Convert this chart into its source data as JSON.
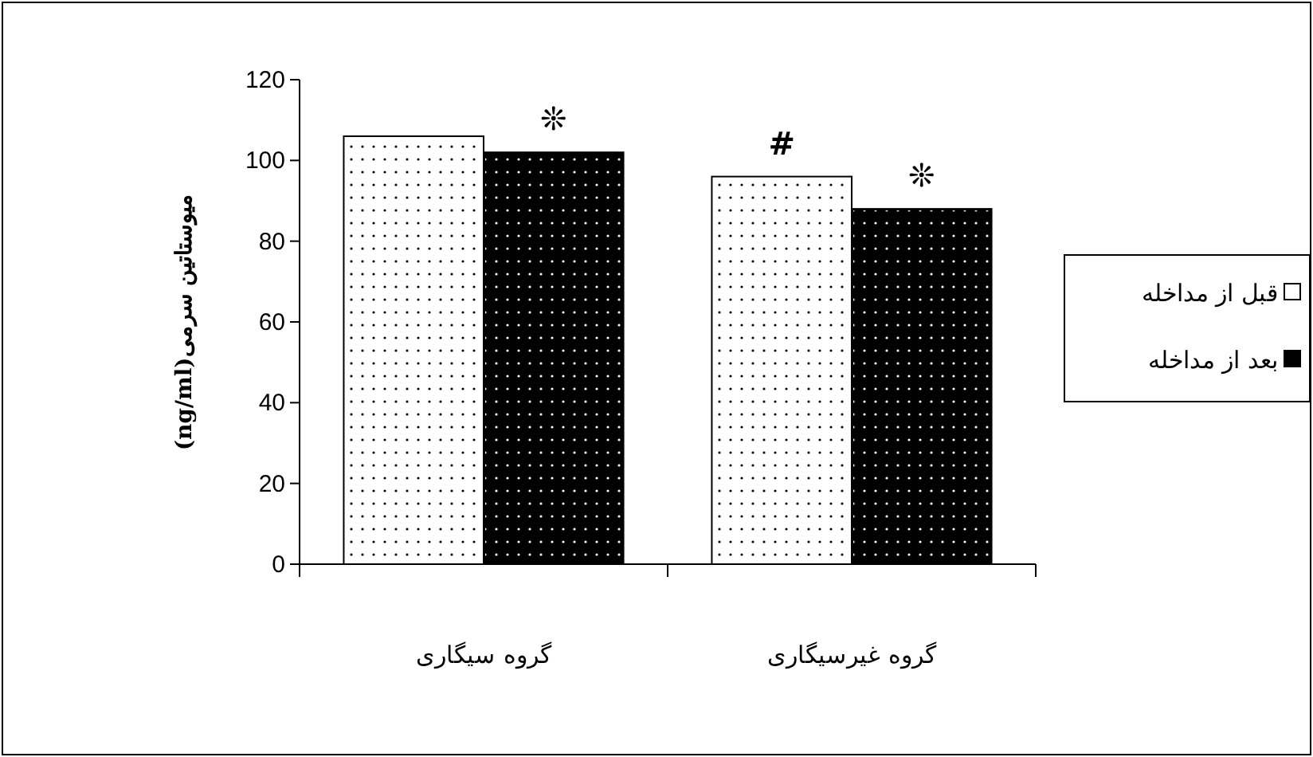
{
  "chart_data": {
    "type": "bar",
    "ylabel": "میوستاتین سرمی(ng/ml)",
    "categories": [
      "گروه سیگاری",
      "گروه غیرسیگاری"
    ],
    "series": [
      {
        "name": "قبل از مداخله",
        "color": "#ffffff",
        "values": [
          106,
          96
        ]
      },
      {
        "name": "بعد از مداخله",
        "color": "#000000",
        "values": [
          102,
          88
        ]
      }
    ],
    "ylim": [
      0,
      120
    ],
    "yticks": [
      0,
      20,
      40,
      60,
      80,
      100,
      120
    ],
    "legend": "right",
    "annotations": [
      {
        "text": "❊",
        "x": "گروه سیگاری",
        "y": 102
      },
      {
        "text": "#",
        "x": "گروه غیرسیگاری",
        "y": 96
      },
      {
        "text": "❊",
        "x": "گروه غیرسیگاری",
        "y": 88
      }
    ]
  }
}
